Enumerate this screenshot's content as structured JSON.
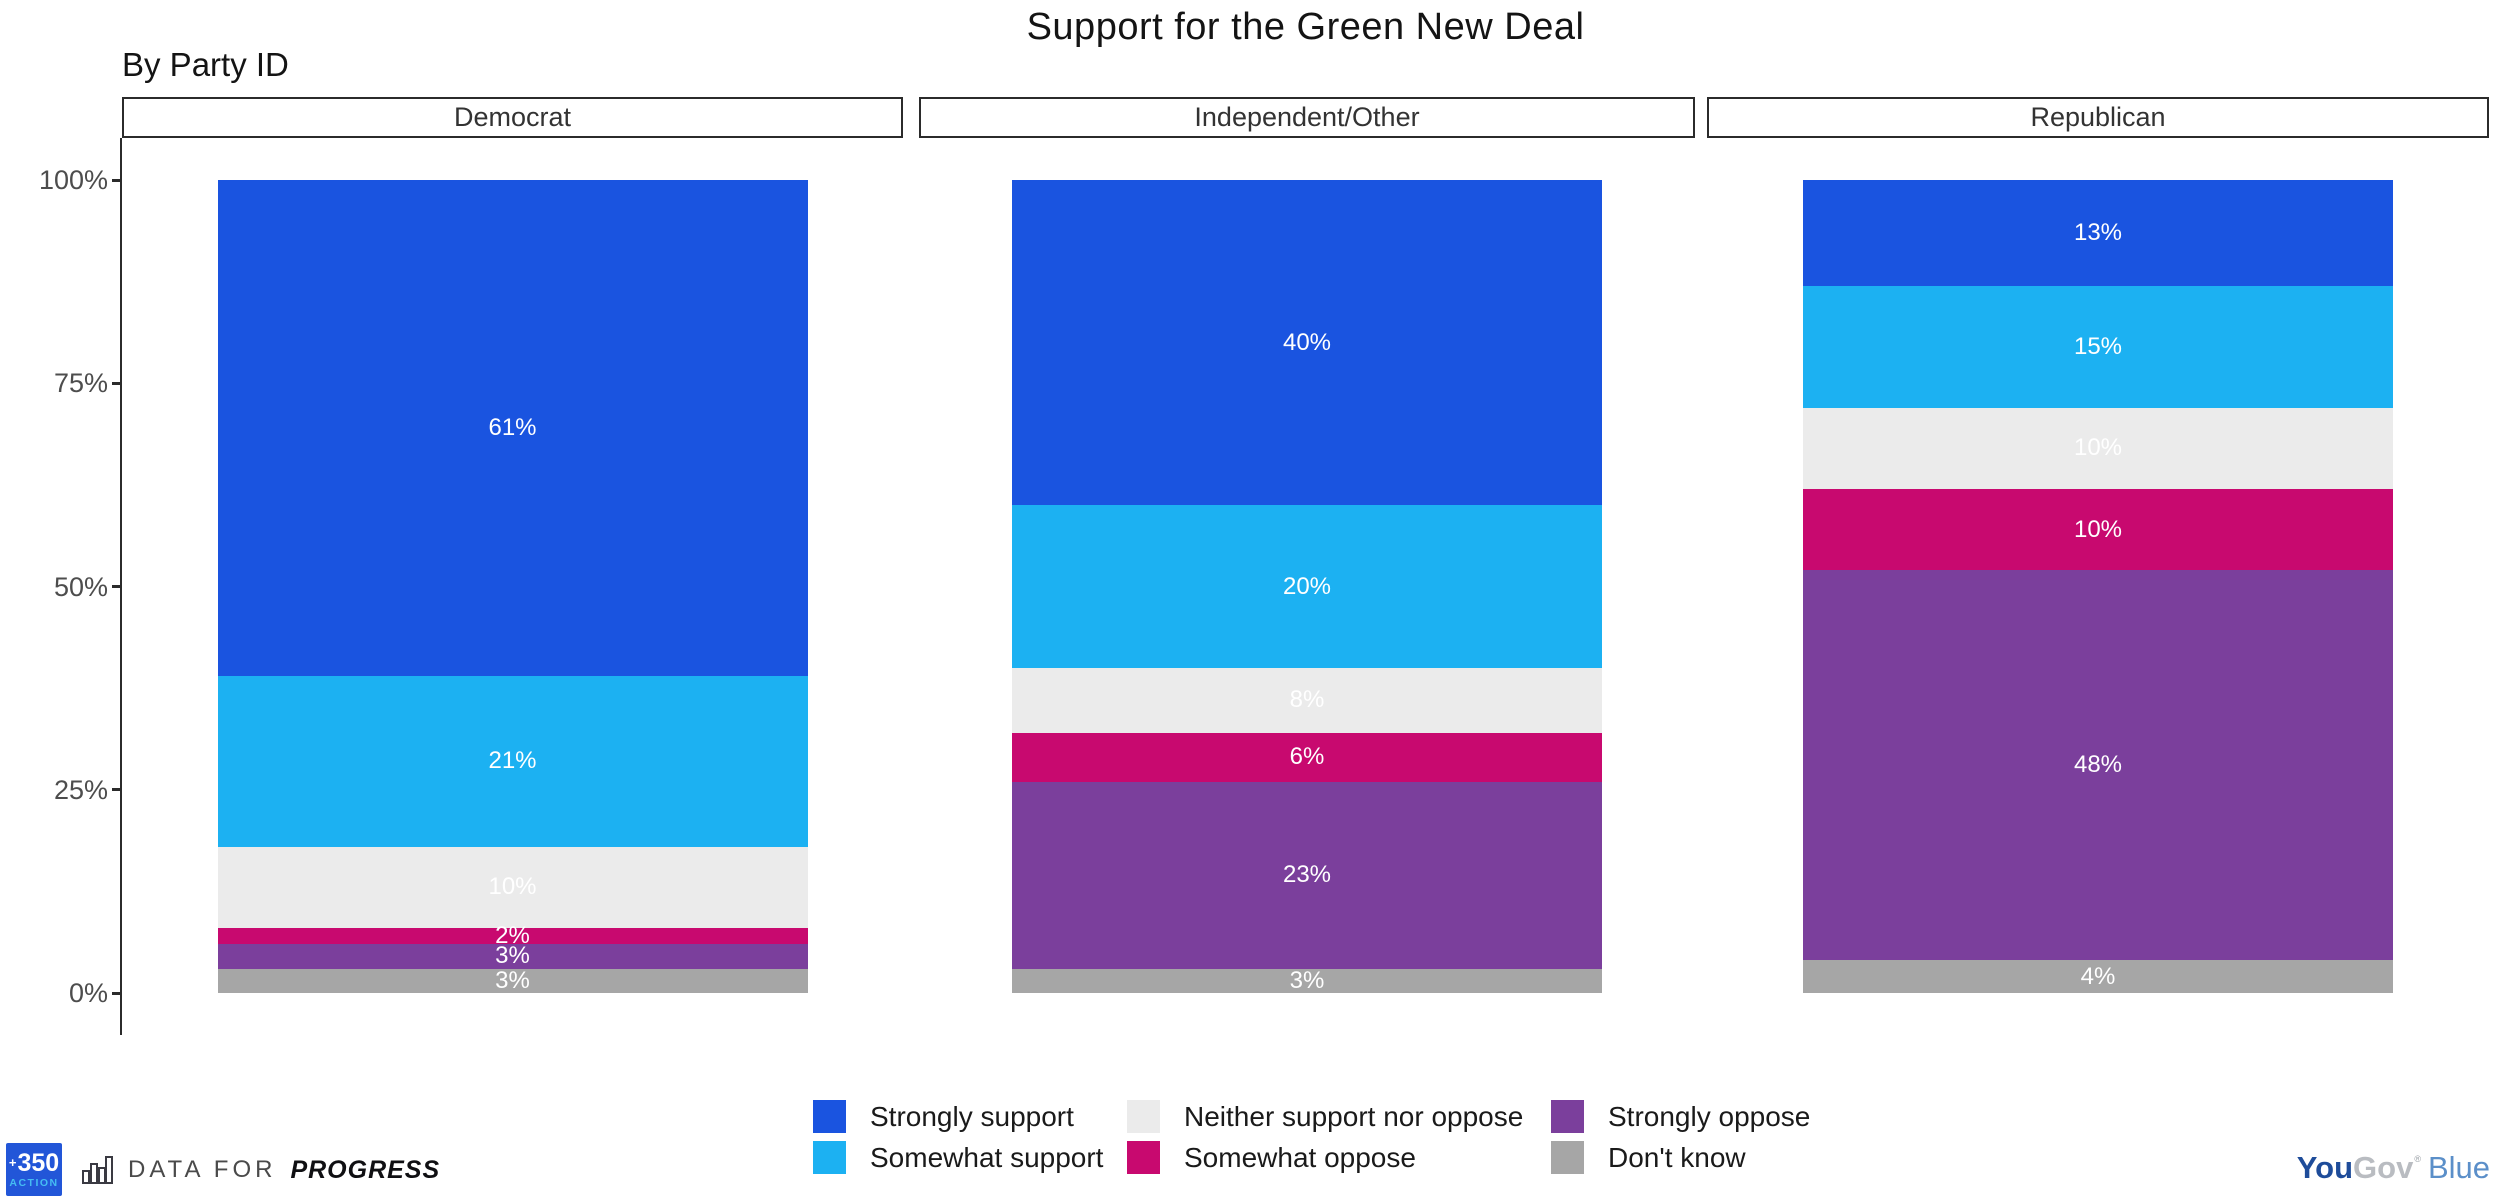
{
  "title": "Support for the Green New Deal",
  "subtitle": "By Party ID",
  "chart_data": {
    "type": "bar",
    "stacked": true,
    "orientation": "vertical",
    "label_format": "percent",
    "facets": [
      "Democrat",
      "Independent/Other",
      "Republican"
    ],
    "series": [
      {
        "name": "Strongly support",
        "color": "#1a54e0",
        "values": [
          61,
          40,
          13
        ]
      },
      {
        "name": "Somewhat support",
        "color": "#1cb1f2",
        "values": [
          21,
          20,
          15
        ]
      },
      {
        "name": "Neither support nor oppose",
        "color": "#ebebeb",
        "values": [
          10,
          8,
          10
        ]
      },
      {
        "name": "Somewhat oppose",
        "color": "#c8096f",
        "values": [
          2,
          6,
          10
        ]
      },
      {
        "name": "Strongly oppose",
        "color": "#7b3f9c",
        "values": [
          3,
          23,
          48
        ]
      },
      {
        "name": "Don't know",
        "color": "#a6a6a6",
        "values": [
          3,
          3,
          4
        ]
      }
    ],
    "y_axis": {
      "range": [
        0,
        100
      ],
      "tick_values": [
        0,
        25,
        50,
        75,
        100
      ],
      "tick_labels": [
        "0%",
        "25%",
        "50%",
        "75%",
        "100%"
      ]
    },
    "legend_position": "bottom",
    "grid": false
  },
  "footer": {
    "logo_350": {
      "plus": "+",
      "number": "350",
      "word": "ACTION",
      "bg_color": "#2256d8",
      "word_color": "#45bdf2"
    },
    "dfp": {
      "prefix": "DATA FOR",
      "brand": "PROGRESS"
    },
    "yougov": {
      "part1": "You",
      "part2": "Gov",
      "reg": "®",
      "part3": "Blue",
      "you_color": "#1e4c9a",
      "gov_color": "#b9bcc1",
      "blue_color": "#5b8fc9"
    }
  }
}
